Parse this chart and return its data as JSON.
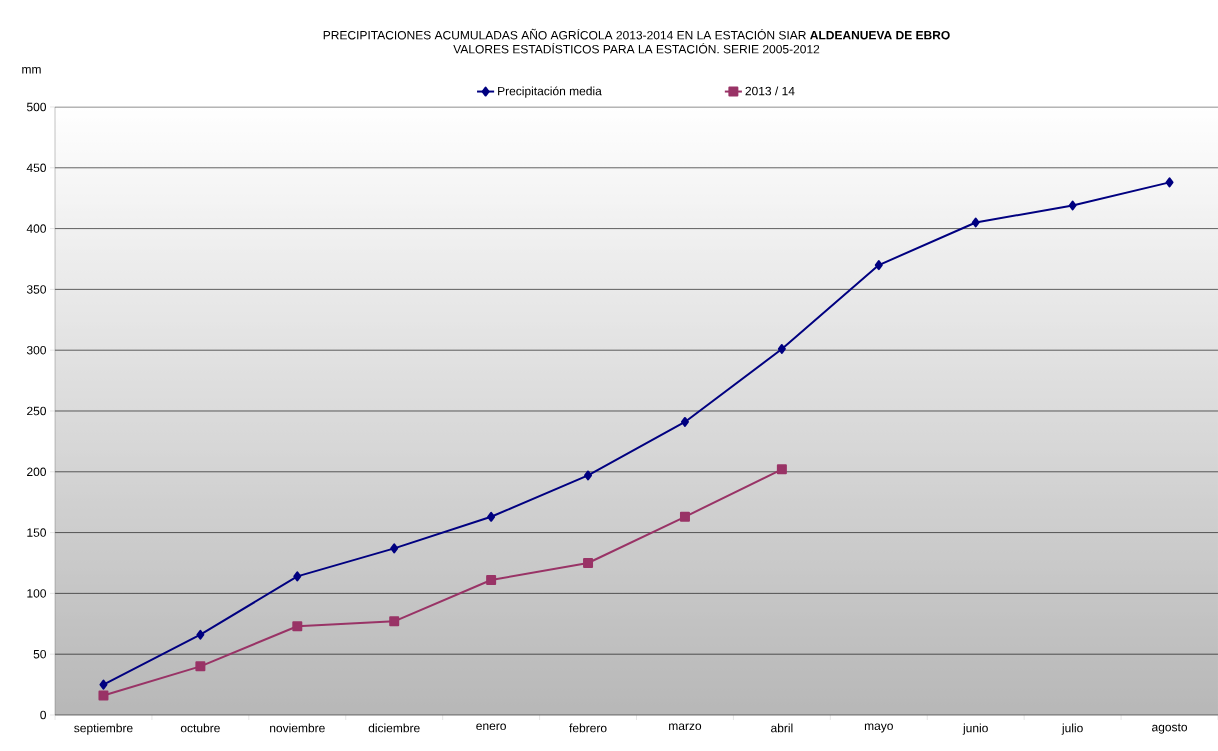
{
  "chart_data": {
    "type": "line",
    "title": "PRECIPITACIONES ACUMULADAS AÑO AGRÍCOLA 2013-2014 EN LA ESTACIÓN SIAR **ALDEANUEVA DE EBRO**",
    "subtitle": "VALORES ESTADÍSTICOS PARA LA ESTACIÓN. SERIE 2005-2012",
    "ylabel": "mm",
    "categories": [
      "septiembre",
      "octubre",
      "noviembre",
      "diciembre",
      "enero",
      "febrero",
      "marzo",
      "abril",
      "mayo",
      "junio",
      "julio",
      "agosto"
    ],
    "series": [
      {
        "name": "Precipitación media",
        "color": "#000080",
        "marker": "diamond",
        "values": [
          25,
          66,
          114,
          137,
          163,
          197,
          241,
          301,
          370,
          405,
          419,
          438
        ]
      },
      {
        "name": "2013 / 14",
        "color": "#993366",
        "marker": "square",
        "values": [
          16,
          40,
          73,
          77,
          111,
          125,
          163,
          202,
          null,
          null,
          null,
          null
        ]
      }
    ],
    "ylim": [
      0,
      500
    ],
    "yticks": [
      0,
      50,
      100,
      150,
      200,
      250,
      300,
      350,
      400,
      450,
      500
    ],
    "grid": "y",
    "legend": "top",
    "line_style": "solid"
  }
}
